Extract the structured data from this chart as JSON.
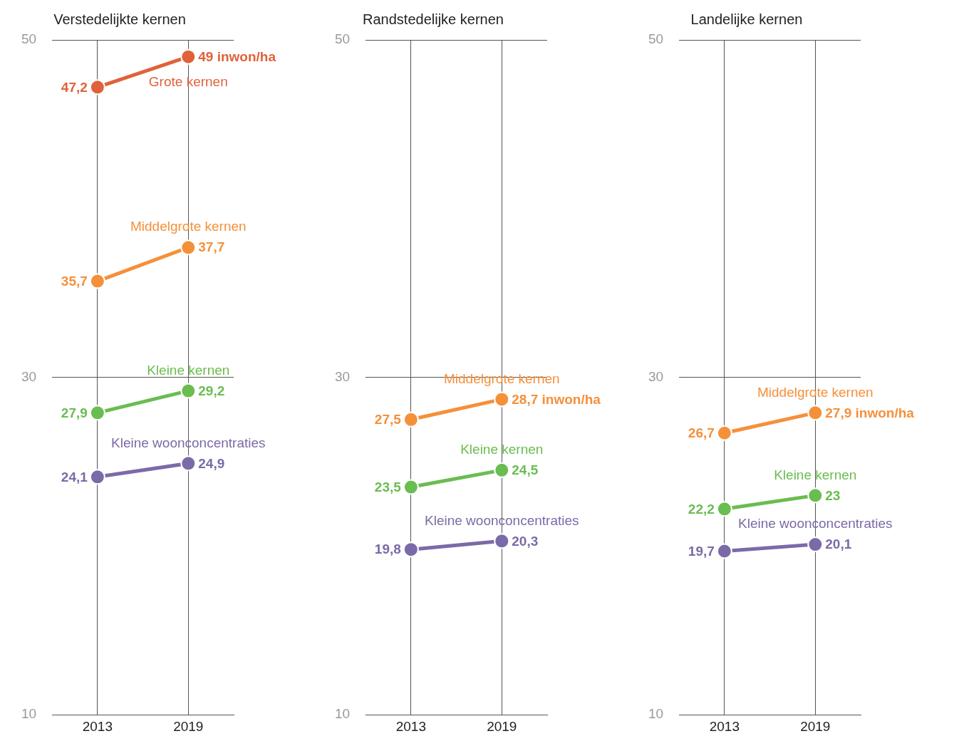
{
  "chart_data": [
    {
      "type": "line",
      "title": "Verstedelijkte kernen",
      "categories": [
        "2013",
        "2019"
      ],
      "ylim": [
        10,
        50
      ],
      "yticks": [
        10,
        30,
        50
      ],
      "grid": true,
      "legend": false,
      "marker": "circle",
      "series": [
        {
          "name": "Grote kernen",
          "color": "#e0623a",
          "values": [
            47.2,
            49
          ],
          "value_labels": [
            "47,2",
            "49 inwon/ha"
          ]
        },
        {
          "name": "Middelgrote kernen",
          "color": "#f5903a",
          "values": [
            35.7,
            37.7
          ],
          "value_labels": [
            "35,7",
            "37,7"
          ]
        },
        {
          "name": "Kleine kernen",
          "color": "#6abd50",
          "values": [
            27.9,
            29.2
          ],
          "value_labels": [
            "27,9",
            "29,2"
          ]
        },
        {
          "name": "Kleine woonconcentraties",
          "color": "#7b6aa8",
          "values": [
            24.1,
            24.9
          ],
          "value_labels": [
            "24,1",
            "24,9"
          ]
        }
      ]
    },
    {
      "type": "line",
      "title": "Randstedelijke kernen",
      "categories": [
        "2013",
        "2019"
      ],
      "ylim": [
        10,
        50
      ],
      "yticks": [
        10,
        30,
        50
      ],
      "grid": true,
      "legend": false,
      "marker": "circle",
      "series": [
        {
          "name": "Middelgrote kernen",
          "color": "#f5903a",
          "values": [
            27.5,
            28.7
          ],
          "value_labels": [
            "27,5",
            "28,7 inwon/ha"
          ]
        },
        {
          "name": "Kleine kernen",
          "color": "#6abd50",
          "values": [
            23.5,
            24.5
          ],
          "value_labels": [
            "23,5",
            "24,5"
          ]
        },
        {
          "name": "Kleine woonconcentraties",
          "color": "#7b6aa8",
          "values": [
            19.8,
            20.3
          ],
          "value_labels": [
            "19,8",
            "20,3"
          ]
        }
      ]
    },
    {
      "type": "line",
      "title": "Landelijke kernen",
      "categories": [
        "2013",
        "2019"
      ],
      "ylim": [
        10,
        50
      ],
      "yticks": [
        10,
        30,
        50
      ],
      "grid": true,
      "legend": false,
      "marker": "circle",
      "series": [
        {
          "name": "Middelgrote kernen",
          "color": "#f5903a",
          "values": [
            26.7,
            27.9
          ],
          "value_labels": [
            "26,7",
            "27,9 inwon/ha"
          ]
        },
        {
          "name": "Kleine kernen",
          "color": "#6abd50",
          "values": [
            22.2,
            23
          ],
          "value_labels": [
            "22,2",
            "23"
          ]
        },
        {
          "name": "Kleine woonconcentraties",
          "color": "#7b6aa8",
          "values": [
            19.7,
            20.1
          ],
          "value_labels": [
            "19,7",
            "20,1"
          ]
        }
      ]
    }
  ]
}
